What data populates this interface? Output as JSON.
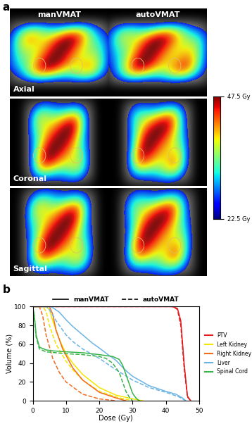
{
  "panel_a": {
    "label": "a",
    "columns": [
      "manVMAT",
      "autoVMAT"
    ],
    "rows": [
      "Axial",
      "Coronal",
      "Sagittal"
    ],
    "colorbar": {
      "range": [
        22.5,
        47.5
      ],
      "ticks": [
        {
          "value": 47.5,
          "label": "47.5 Gy"
        },
        {
          "value": 22.5,
          "label": "22.5 Gy"
        }
      ]
    }
  },
  "chart_data": {
    "type": "line",
    "panel_label": "b",
    "x_label": "Dose (Gy)",
    "y_label": "Volume (%)",
    "xlim": [
      0,
      50
    ],
    "xticks": [
      0,
      10,
      20,
      30,
      40,
      50
    ],
    "ylim": [
      0,
      100
    ],
    "yticks": [
      0,
      20,
      40,
      60,
      80,
      100
    ],
    "legend": "right",
    "plans": [
      {
        "name": "manVMAT",
        "line_style": "solid"
      },
      {
        "name": "autoVMAT",
        "line_style": "dashed"
      }
    ],
    "series": [
      {
        "name": "PTV",
        "color": "#e31a1c",
        "plan": "manVMAT",
        "line_style": "solid",
        "x": [
          0,
          42,
          43.5,
          44.5,
          45.5,
          46.5,
          47.5
        ],
        "values": [
          100,
          100,
          98,
          85,
          40,
          5,
          0
        ]
      },
      {
        "name": "PTV",
        "color": "#e31a1c",
        "plan": "autoVMAT",
        "line_style": "dashed",
        "x": [
          0,
          42,
          43.5,
          44.5,
          45.5,
          46.5,
          47.5
        ],
        "values": [
          100,
          100,
          97,
          80,
          35,
          4,
          0
        ]
      },
      {
        "name": "Left Kidney",
        "color": "#f2e600",
        "plan": "manVMAT",
        "line_style": "solid",
        "x": [
          0,
          4,
          5,
          6,
          8,
          10,
          12,
          15,
          20,
          25,
          30,
          33
        ],
        "values": [
          100,
          100,
          97,
          85,
          65,
          50,
          40,
          28,
          14,
          6,
          2,
          0
        ]
      },
      {
        "name": "Left Kidney",
        "color": "#f2e600",
        "plan": "autoVMAT",
        "line_style": "dashed",
        "x": [
          0,
          3,
          4,
          5,
          7,
          10,
          12,
          15,
          20,
          25,
          30
        ],
        "values": [
          100,
          100,
          95,
          80,
          60,
          42,
          33,
          22,
          10,
          4,
          0
        ]
      },
      {
        "name": "Right Kidney",
        "color": "#f26b21",
        "plan": "manVMAT",
        "line_style": "solid",
        "x": [
          0,
          5,
          6,
          7,
          9,
          12,
          15,
          20,
          25,
          28
        ],
        "values": [
          100,
          100,
          92,
          75,
          55,
          35,
          22,
          9,
          3,
          0
        ]
      },
      {
        "name": "Right Kidney",
        "color": "#f26b21",
        "plan": "autoVMAT",
        "line_style": "dashed",
        "x": [
          0,
          2,
          3,
          4,
          6,
          8,
          10,
          15,
          20,
          25
        ],
        "values": [
          100,
          100,
          90,
          70,
          45,
          30,
          20,
          7,
          2,
          0
        ]
      },
      {
        "name": "Liver",
        "color": "#6cb4e4",
        "plan": "manVMAT",
        "line_style": "solid",
        "x": [
          0,
          5,
          6,
          8,
          10,
          12,
          15,
          18,
          20,
          23,
          25,
          28,
          30,
          35,
          40,
          43,
          45,
          46
        ],
        "values": [
          100,
          100,
          99,
          94,
          86,
          79,
          70,
          61,
          56,
          48,
          43,
          32,
          26,
          16,
          10,
          7,
          3,
          0
        ]
      },
      {
        "name": "Liver",
        "color": "#6cb4e4",
        "plan": "autoVMAT",
        "line_style": "dashed",
        "x": [
          0,
          4,
          5,
          7,
          10,
          12,
          15,
          20,
          25,
          30,
          35,
          40,
          44,
          46
        ],
        "values": [
          100,
          100,
          97,
          85,
          70,
          63,
          55,
          45,
          33,
          22,
          14,
          9,
          4,
          0
        ]
      },
      {
        "name": "Spinal Cord",
        "color": "#37b34a",
        "plan": "manVMAT",
        "line_style": "solid",
        "x": [
          0,
          0.5,
          1,
          2,
          4,
          6,
          10,
          15,
          20,
          24,
          26,
          27,
          28,
          29,
          30,
          31,
          32
        ],
        "values": [
          100,
          90,
          70,
          57,
          54,
          53,
          52,
          51,
          49,
          47,
          44,
          38,
          28,
          18,
          8,
          3,
          0
        ]
      },
      {
        "name": "Spinal Cord",
        "color": "#37b34a",
        "plan": "autoVMAT",
        "line_style": "dashed",
        "x": [
          0,
          0.5,
          1,
          2,
          4,
          10,
          15,
          20,
          22,
          24,
          26,
          27,
          28,
          29,
          30
        ],
        "values": [
          100,
          88,
          68,
          55,
          52,
          50,
          49,
          47,
          45,
          40,
          30,
          20,
          10,
          4,
          0
        ]
      }
    ]
  }
}
